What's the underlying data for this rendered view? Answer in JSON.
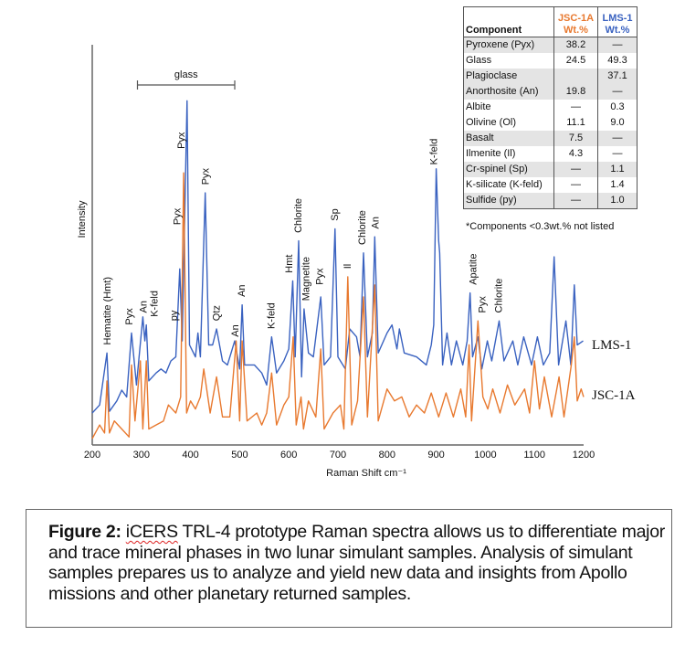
{
  "chart_data": {
    "type": "line",
    "xlabel": "Raman Shift cm⁻¹",
    "ylabel": "Intensity",
    "xlim": [
      200,
      1200
    ],
    "ylim": [
      0,
      100
    ],
    "xticks": [
      "200",
      "300",
      "400",
      "500",
      "600",
      "700",
      "800",
      "900",
      "1000",
      "1100",
      "1200"
    ],
    "grid": false,
    "colors": {
      "LMS-1": "#3a62c0",
      "JSC-1A": "#e8792f"
    },
    "series": [
      {
        "name": "LMS-1",
        "points": [
          [
            200,
            8
          ],
          [
            215,
            10
          ],
          [
            230,
            23
          ],
          [
            235,
            8.4
          ],
          [
            250,
            11
          ],
          [
            260,
            13.7
          ],
          [
            270,
            12
          ],
          [
            280,
            28
          ],
          [
            290,
            15
          ],
          [
            303,
            32
          ],
          [
            307,
            26
          ],
          [
            310,
            30
          ],
          [
            315,
            16
          ],
          [
            330,
            18
          ],
          [
            340,
            19
          ],
          [
            350,
            18
          ],
          [
            360,
            21
          ],
          [
            370,
            22
          ],
          [
            378,
            44
          ],
          [
            383,
            26
          ],
          [
            393,
            86
          ],
          [
            398,
            25
          ],
          [
            410,
            22
          ],
          [
            415,
            28
          ],
          [
            420,
            22
          ],
          [
            430,
            63
          ],
          [
            437,
            25
          ],
          [
            445,
            25
          ],
          [
            453,
            29
          ],
          [
            465,
            21
          ],
          [
            475,
            20
          ],
          [
            490,
            26
          ],
          [
            500,
            19
          ],
          [
            505,
            35
          ],
          [
            510,
            20
          ],
          [
            530,
            20
          ],
          [
            545,
            18
          ],
          [
            555,
            15
          ],
          [
            565,
            27
          ],
          [
            575,
            18
          ],
          [
            590,
            21
          ],
          [
            600,
            24
          ],
          [
            608,
            41
          ],
          [
            613,
            22
          ],
          [
            620,
            51
          ],
          [
            626,
            17
          ],
          [
            631,
            34
          ],
          [
            640,
            23
          ],
          [
            650,
            22
          ],
          [
            665,
            37
          ],
          [
            672,
            20
          ],
          [
            685,
            22
          ],
          [
            694,
            54
          ],
          [
            700,
            22
          ],
          [
            715,
            19
          ],
          [
            724,
            29
          ],
          [
            738,
            27
          ],
          [
            745,
            22
          ],
          [
            752,
            48
          ],
          [
            760,
            22
          ],
          [
            770,
            28
          ],
          [
            775,
            52
          ],
          [
            782,
            23
          ],
          [
            800,
            28
          ],
          [
            810,
            30
          ],
          [
            820,
            24
          ],
          [
            825,
            29
          ],
          [
            835,
            23
          ],
          [
            860,
            22
          ],
          [
            880,
            20
          ],
          [
            890,
            25
          ],
          [
            895,
            30
          ],
          [
            900,
            69
          ],
          [
            905,
            51
          ],
          [
            907,
            48
          ],
          [
            913,
            20
          ],
          [
            922,
            28
          ],
          [
            931,
            20
          ],
          [
            941,
            26
          ],
          [
            954,
            20
          ],
          [
            963,
            26
          ],
          [
            969,
            38
          ],
          [
            974,
            22
          ],
          [
            985,
            27
          ],
          [
            993,
            19
          ],
          [
            1004,
            26
          ],
          [
            1013,
            21
          ],
          [
            1028,
            31
          ],
          [
            1038,
            21
          ],
          [
            1056,
            26
          ],
          [
            1066,
            20
          ],
          [
            1078,
            27
          ],
          [
            1094,
            20
          ],
          [
            1106,
            27
          ],
          [
            1118,
            20
          ],
          [
            1131,
            23
          ],
          [
            1140,
            47
          ],
          [
            1149,
            20
          ],
          [
            1164,
            31
          ],
          [
            1174,
            20
          ],
          [
            1181,
            40
          ],
          [
            1187,
            25
          ],
          [
            1199,
            26
          ]
        ]
      },
      {
        "name": "JSC-1A",
        "points": [
          [
            200,
            1.6
          ],
          [
            215,
            5
          ],
          [
            225,
            3
          ],
          [
            230,
            16
          ],
          [
            235,
            3
          ],
          [
            245,
            6
          ],
          [
            260,
            4
          ],
          [
            275,
            2
          ],
          [
            280,
            20
          ],
          [
            287,
            6
          ],
          [
            298,
            21
          ],
          [
            303,
            4
          ],
          [
            310,
            21
          ],
          [
            315,
            4
          ],
          [
            330,
            5
          ],
          [
            345,
            6
          ],
          [
            355,
            10
          ],
          [
            370,
            8
          ],
          [
            380,
            12
          ],
          [
            386,
            68
          ],
          [
            392,
            8
          ],
          [
            400,
            11
          ],
          [
            410,
            9
          ],
          [
            420,
            12
          ],
          [
            427,
            19
          ],
          [
            440,
            8
          ],
          [
            453,
            17
          ],
          [
            465,
            7
          ],
          [
            480,
            7
          ],
          [
            493,
            26
          ],
          [
            500,
            6
          ],
          [
            505,
            26
          ],
          [
            515,
            6
          ],
          [
            535,
            8
          ],
          [
            545,
            5
          ],
          [
            555,
            8
          ],
          [
            565,
            18
          ],
          [
            575,
            5
          ],
          [
            590,
            10
          ],
          [
            600,
            12
          ],
          [
            609,
            27
          ],
          [
            615,
            5
          ],
          [
            625,
            12
          ],
          [
            630,
            4
          ],
          [
            640,
            11
          ],
          [
            655,
            7
          ],
          [
            665,
            24
          ],
          [
            672,
            4
          ],
          [
            690,
            8
          ],
          [
            705,
            10
          ],
          [
            712,
            4
          ],
          [
            720,
            42
          ],
          [
            728,
            5
          ],
          [
            740,
            11
          ],
          [
            752,
            37
          ],
          [
            760,
            7
          ],
          [
            775,
            40
          ],
          [
            782,
            6
          ],
          [
            800,
            14
          ],
          [
            815,
            11
          ],
          [
            830,
            12
          ],
          [
            845,
            7
          ],
          [
            860,
            10
          ],
          [
            876,
            8
          ],
          [
            890,
            13
          ],
          [
            905,
            7
          ],
          [
            920,
            13
          ],
          [
            935,
            7
          ],
          [
            950,
            14
          ],
          [
            960,
            7
          ],
          [
            967,
            25
          ],
          [
            972,
            6
          ],
          [
            985,
            31
          ],
          [
            995,
            12
          ],
          [
            1005,
            9
          ],
          [
            1015,
            14
          ],
          [
            1030,
            8
          ],
          [
            1045,
            15
          ],
          [
            1060,
            10
          ],
          [
            1080,
            14
          ],
          [
            1090,
            8
          ],
          [
            1100,
            21
          ],
          [
            1110,
            9
          ],
          [
            1120,
            17
          ],
          [
            1135,
            7
          ],
          [
            1150,
            17
          ],
          [
            1160,
            7
          ],
          [
            1175,
            20
          ],
          [
            1181,
            27
          ],
          [
            1187,
            11
          ],
          [
            1195,
            14
          ],
          [
            1200,
            12
          ]
        ]
      }
    ],
    "annotations": [
      {
        "text": "Hematite (Hmt)",
        "x": 230,
        "y": 25
      },
      {
        "text": "Pyx",
        "x": 280,
        "y": 30
      },
      {
        "text": "An",
        "x": 303,
        "y": 33
      },
      {
        "text": "K-feld",
        "x": 318,
        "y": 32
      },
      {
        "text": "py",
        "x": 365,
        "y": 31
      },
      {
        "text": "Pyx",
        "x": 372,
        "y": 55
      },
      {
        "text": "Pyx",
        "x": 380,
        "y": 74
      },
      {
        "text": "Pyx",
        "x": 430,
        "y": 65
      },
      {
        "text": "Qtz",
        "x": 452,
        "y": 31
      },
      {
        "text": "An",
        "x": 490,
        "y": 27
      },
      {
        "text": "An",
        "x": 503,
        "y": 37
      },
      {
        "text": "K-feld",
        "x": 563,
        "y": 29
      },
      {
        "text": "Hmt",
        "x": 600,
        "y": 43
      },
      {
        "text": "Chlorite",
        "x": 618,
        "y": 53
      },
      {
        "text": "Magnetite",
        "x": 634,
        "y": 36
      },
      {
        "text": "Pyx",
        "x": 662,
        "y": 40
      },
      {
        "text": "Sp",
        "x": 693,
        "y": 56
      },
      {
        "text": "Il",
        "x": 719,
        "y": 44
      },
      {
        "text": "Chlorite",
        "x": 748,
        "y": 50
      },
      {
        "text": "An",
        "x": 775,
        "y": 54
      },
      {
        "text": "K-feld",
        "x": 894,
        "y": 70
      },
      {
        "text": "Apatite",
        "x": 974,
        "y": 40
      },
      {
        "text": "Pyx",
        "x": 993,
        "y": 33
      },
      {
        "text": "Chlorite",
        "x": 1026,
        "y": 33
      }
    ],
    "range_annotation": {
      "text": "glass",
      "from": 292,
      "to": 490
    }
  },
  "table": {
    "headers": [
      "Component",
      "JSC-1A Wt.%",
      "LMS-1 Wt.%"
    ],
    "header_lines": {
      "c2a": "JSC-1A",
      "c2b": "Wt.%",
      "c3a": "LMS-1",
      "c3b": "Wt.%"
    },
    "rows": [
      [
        "Pyroxene (Pyx)",
        "38.2",
        "—"
      ],
      [
        "Glass",
        "24.5",
        "49.3"
      ],
      [
        "Plagioclase",
        "",
        "37.1"
      ],
      [
        "Anorthosite (An)",
        "19.8",
        "—"
      ],
      [
        "Albite",
        "—",
        "0.3"
      ],
      [
        "Olivine (Ol)",
        "11.1",
        "9.0"
      ],
      [
        "Basalt",
        "7.5",
        "—"
      ],
      [
        "Ilmenite (Il)",
        "4.3",
        "—"
      ],
      [
        "Cr-spinel (Sp)",
        "—",
        "1.1"
      ],
      [
        "K-silicate (K-feld)",
        "—",
        "1.4"
      ],
      [
        "Sulfide (py)",
        "—",
        "1.0"
      ]
    ],
    "footnote": "*Components <0.3wt.% not listed"
  },
  "caption": {
    "label": "Figure 2:",
    "misspelled": "iCERS",
    "text": " TRL-4 prototype Raman spectra allows us to differentiate major and trace mineral phases in two lunar simulant samples. Analysis of simulant samples prepares us to analyze and yield new data and insights from Apollo missions and other planetary returned samples."
  }
}
